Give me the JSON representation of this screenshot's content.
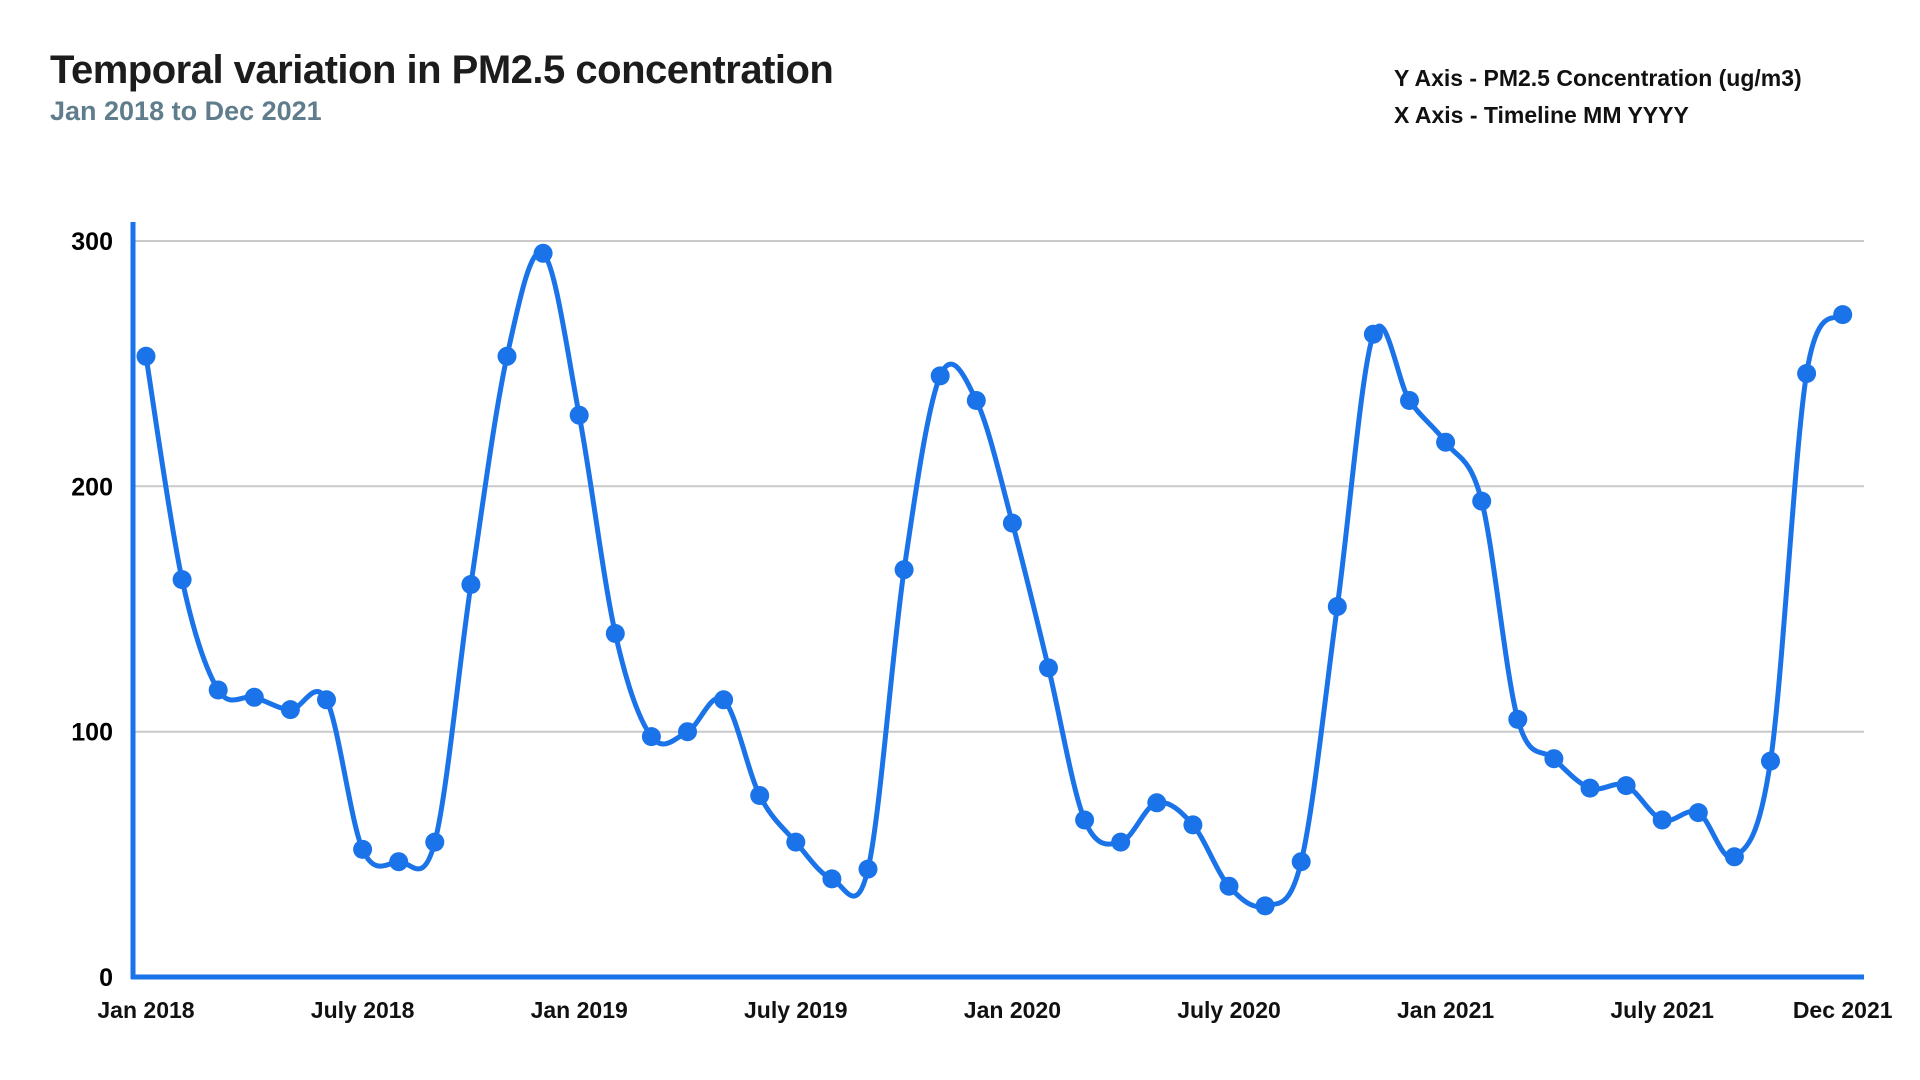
{
  "title": "Temporal variation in PM2.5 concentration",
  "subtitle": "Jan 2018 to Dec 2021",
  "axis_note": {
    "y": "Y Axis - PM2.5 Concentration (ug/m3)",
    "x": "X Axis - Timeline MM YYYY"
  },
  "colors": {
    "line": "#1a73e8",
    "point": "#1a73e8",
    "axis_spine": "#1a73e8",
    "gridline": "#c9c9c9",
    "title": "#1c1c1c",
    "subtitle": "#5f7d8c",
    "tick_label": "#111111",
    "background": "#ffffff"
  },
  "chart_data": {
    "type": "line",
    "title": "Temporal variation in PM2.5 concentration",
    "subtitle": "Jan 2018 to Dec 2021",
    "ylabel": "PM2.5 Concentration (ug/m3)",
    "xlabel": "Timeline MM YYYY",
    "ylim": [
      0,
      300
    ],
    "yticks": [
      0,
      100,
      200,
      300
    ],
    "grid": "horizontal-gridlines-at-100-200-300",
    "legend_position": "none",
    "line_smoothing": "curved",
    "markers": "filled-circles",
    "xticks": [
      {
        "label": "Jan 2018",
        "month_index": 0
      },
      {
        "label": "July 2018",
        "month_index": 6
      },
      {
        "label": "Jan 2019",
        "month_index": 12
      },
      {
        "label": "July 2019",
        "month_index": 18
      },
      {
        "label": "Jan 2020",
        "month_index": 24
      },
      {
        "label": "July 2020",
        "month_index": 30
      },
      {
        "label": "Jan 2021",
        "month_index": 36
      },
      {
        "label": "July 2021",
        "month_index": 42
      },
      {
        "label": "Dec 2021",
        "month_index": 47
      }
    ],
    "categories": [
      "Jan 2018",
      "Feb 2018",
      "Mar 2018",
      "Apr 2018",
      "May 2018",
      "Jun 2018",
      "Jul 2018",
      "Aug 2018",
      "Sep 2018",
      "Oct 2018",
      "Nov 2018",
      "Dec 2018",
      "Jan 2019",
      "Feb 2019",
      "Mar 2019",
      "Apr 2019",
      "May 2019",
      "Jun 2019",
      "Jul 2019",
      "Aug 2019",
      "Sep 2019",
      "Oct 2019",
      "Nov 2019",
      "Dec 2019",
      "Jan 2020",
      "Feb 2020",
      "Mar 2020",
      "Apr 2020",
      "May 2020",
      "Jun 2020",
      "Jul 2020",
      "Aug 2020",
      "Sep 2020",
      "Oct 2020",
      "Nov 2020",
      "Dec 2020",
      "Jan 2021",
      "Feb 2021",
      "Mar 2021",
      "Apr 2021",
      "May 2021",
      "Jun 2021",
      "Jul 2021",
      "Aug 2021",
      "Sep 2021",
      "Oct 2021",
      "Nov 2021",
      "Dec 2021"
    ],
    "values": [
      253,
      162,
      117,
      114,
      109,
      113,
      52,
      47,
      55,
      160,
      253,
      295,
      229,
      140,
      98,
      100,
      113,
      74,
      55,
      40,
      44,
      166,
      245,
      235,
      185,
      126,
      64,
      55,
      71,
      62,
      37,
      29,
      47,
      151,
      262,
      235,
      218,
      194,
      105,
      89,
      77,
      78,
      64,
      67,
      49,
      88,
      246,
      270
    ]
  }
}
